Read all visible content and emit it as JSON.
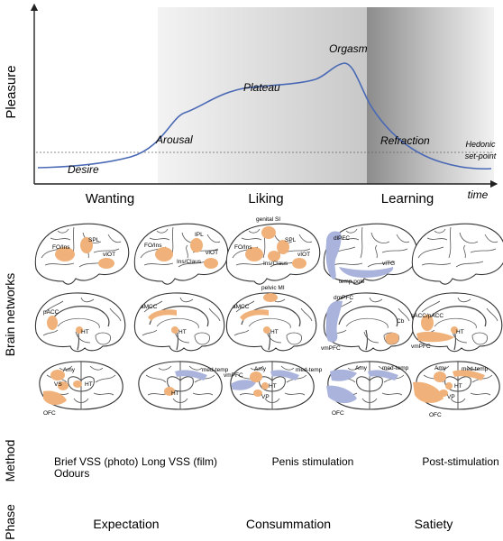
{
  "axes": {
    "y_label": "Pleasure",
    "x_label": "time"
  },
  "curve_labels": {
    "desire": "Desire",
    "arousal": "Arousal",
    "plateau": "Plateau",
    "orgasm": "Orgasm",
    "refraction": "Refraction",
    "hedonic_1": "Hedonic",
    "hedonic_2": "set-point"
  },
  "stages": [
    "Wanting",
    "Liking",
    "Learning"
  ],
  "row_labels": {
    "brain_networks": "Brain networks",
    "method": "Method",
    "phase": "Phase"
  },
  "brain_row1": {
    "c1": [
      "FO/Ins",
      "SPL",
      "vIOT"
    ],
    "c2": [
      "FO/Ins",
      "IPL",
      "vIOT",
      "Ins/Claus"
    ],
    "c3": [
      "genital SI",
      "SPL",
      "FO/Ins",
      "vIOT",
      "Ins/Claus"
    ],
    "c4": [
      "dlPFC",
      "vITG",
      "temp pole"
    ]
  },
  "brain_row2": {
    "c1": [
      "pACC",
      "HT"
    ],
    "c2": [
      "aMCC",
      "HT"
    ],
    "c3": [
      "pelvic MI",
      "aMCC",
      "HT"
    ],
    "c4": [
      "dmPFC",
      "Cb",
      "vmPFC"
    ],
    "c5": [
      "sACC/pACC",
      "HT",
      "vmPFC"
    ]
  },
  "brain_row3": {
    "c1": [
      "Amy",
      "VS",
      "HT",
      "OFC"
    ],
    "c2": [
      "med-temp",
      "HT"
    ],
    "c3": [
      "vmPFC",
      "Amy",
      "med-temp",
      "HT",
      "VP"
    ],
    "c4": [
      "Amy",
      "med-temp",
      "OFC"
    ],
    "c5": [
      "Amy",
      "med-temp",
      "HT",
      "VP",
      "OFC"
    ]
  },
  "methods": {
    "m1a": "Brief VSS (photo)",
    "m1b": "Odours",
    "m2": "Long VSS (film)",
    "m3": "Penis stimulation",
    "m4": "Post-stimulation"
  },
  "phases": [
    "Expectation",
    "Consummation",
    "Satiety"
  ],
  "colors": {
    "activation": "#f0b27a",
    "deactivation": "#aab3dc",
    "curve": "#4a69b5"
  }
}
